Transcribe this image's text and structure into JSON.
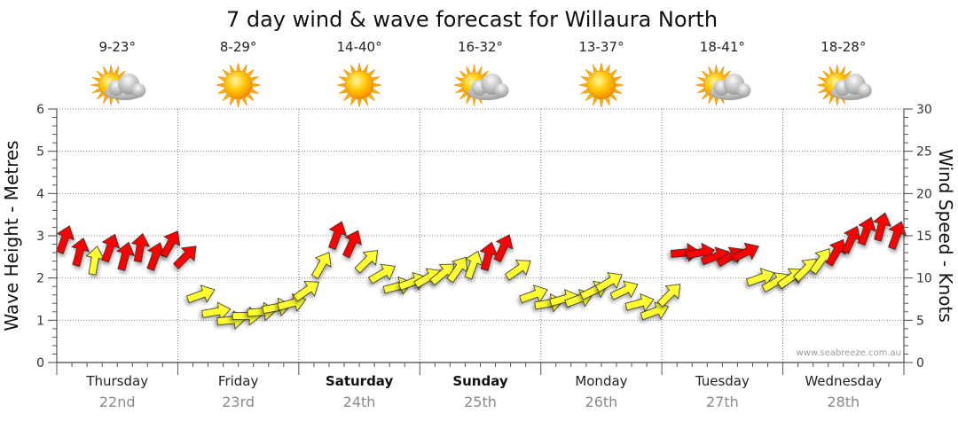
{
  "chart_data": {
    "type": "line",
    "title": "7 day wind & wave forecast for Willaura North",
    "ylabel_left": "Wave Height - Metres",
    "ylabel_right": "Wind Speed - Knots",
    "ylim_left": [
      0,
      6
    ],
    "ylim_right": [
      0,
      30
    ],
    "yticks_left": [
      "0",
      "1",
      "2",
      "3",
      "4",
      "5",
      "6"
    ],
    "yticks_right": [
      "0",
      "5",
      "10",
      "15",
      "20",
      "25",
      "30"
    ],
    "credit": "www.seabreeze.com.au",
    "days": [
      {
        "name": "Thursday",
        "date": "22nd",
        "temp": "9-23°",
        "weather": "partly-cloudy-icon",
        "weekend": false
      },
      {
        "name": "Friday",
        "date": "23rd",
        "temp": "8-29°",
        "weather": "sunny-icon",
        "weekend": false
      },
      {
        "name": "Saturday",
        "date": "24th",
        "temp": "14-40°",
        "weather": "sunny-icon",
        "weekend": true
      },
      {
        "name": "Sunday",
        "date": "25th",
        "temp": "16-32°",
        "weather": "partly-cloudy-icon",
        "weekend": true
      },
      {
        "name": "Monday",
        "date": "26th",
        "temp": "13-37°",
        "weather": "sunny-icon",
        "weekend": false
      },
      {
        "name": "Tuesday",
        "date": "27th",
        "temp": "18-41°",
        "weather": "partly-cloudy-icon",
        "weekend": false
      },
      {
        "name": "Wednesday",
        "date": "28th",
        "temp": "18-28°",
        "weather": "partly-cloudy-icon",
        "weekend": false
      }
    ],
    "series": [
      {
        "name": "Wind Speed (knots)",
        "axis": "right",
        "x_hours": [
          0,
          3,
          6,
          9,
          12,
          15,
          18,
          21,
          24,
          27,
          30,
          33,
          36,
          39,
          42,
          45,
          48,
          51,
          54,
          57,
          60,
          63,
          66,
          69,
          72,
          75,
          78,
          81,
          84,
          87,
          90,
          93,
          96,
          99,
          102,
          105,
          108,
          111,
          114,
          117,
          120,
          123,
          126,
          129,
          132,
          135,
          138,
          141,
          144,
          147,
          150,
          153,
          156,
          159,
          162,
          165
        ],
        "values": [
          14.5,
          13,
          12,
          13.5,
          12.5,
          13.5,
          12.5,
          14,
          12.5,
          8,
          6,
          5,
          5.5,
          6,
          6.5,
          7,
          8.5,
          11.5,
          15,
          14,
          12,
          10.5,
          9,
          9.5,
          10,
          10.5,
          11,
          11.5,
          12.5,
          13.5,
          11,
          8,
          7,
          7.5,
          7.5,
          8.5,
          9.5,
          8.5,
          7,
          6,
          8,
          13,
          13,
          12.5,
          12.5,
          13,
          10,
          9.5,
          10,
          11,
          12,
          13,
          14.5,
          15.5,
          16,
          15
        ],
        "direction_deg": [
          200,
          195,
          190,
          200,
          195,
          190,
          200,
          210,
          225,
          250,
          260,
          265,
          270,
          265,
          260,
          255,
          235,
          210,
          200,
          205,
          225,
          240,
          255,
          250,
          240,
          230,
          215,
          200,
          195,
          205,
          235,
          250,
          260,
          255,
          250,
          245,
          240,
          245,
          255,
          250,
          225,
          265,
          260,
          250,
          240,
          245,
          250,
          240,
          235,
          225,
          215,
          210,
          205,
          200,
          195,
          200
        ],
        "color_rule": {
          "yellow": "below 12.5 knots",
          "red": "12.5 knots and above"
        }
      }
    ]
  }
}
